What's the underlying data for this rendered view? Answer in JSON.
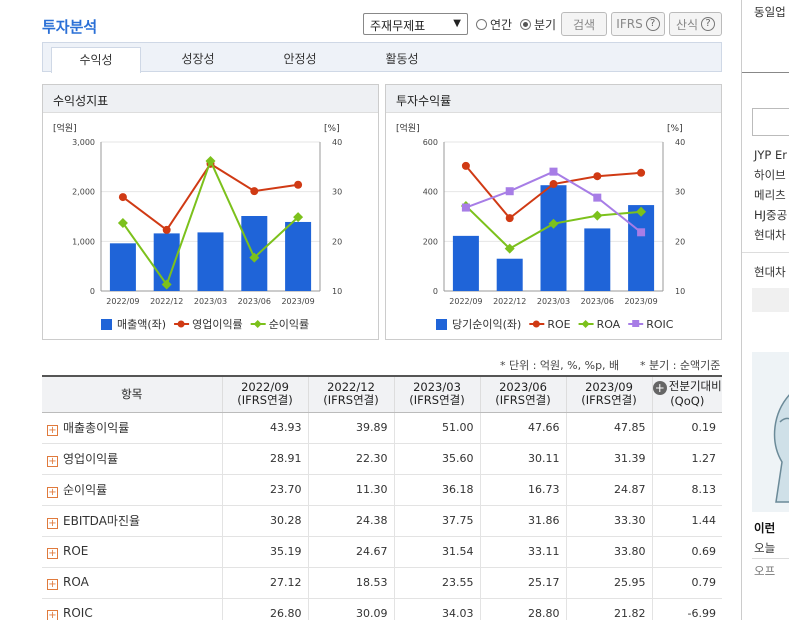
{
  "header": {
    "title": "투자분석",
    "select_value": "주재무제표",
    "radio_year": "연간",
    "radio_quarter": "분기",
    "search_btn": "검색",
    "ifrs_btn": "IFRS",
    "formula_btn": "산식"
  },
  "tabs": [
    "수익성",
    "성장성",
    "안정성",
    "활동성"
  ],
  "charts": {
    "left": {
      "title": "수익성지표",
      "left_unit": "[억원]",
      "right_unit": "[%]",
      "legend": [
        "매출액(좌)",
        "영업이익률",
        "순이익률"
      ]
    },
    "right": {
      "title": "투자수익률",
      "left_unit": "[억원]",
      "right_unit": "[%]",
      "legend": [
        "당기순이익(좌)",
        "ROE",
        "ROA",
        "ROIC"
      ]
    }
  },
  "chart_data": [
    {
      "type": "bar",
      "title": "수익성지표",
      "categories": [
        "2022/09",
        "2022/12",
        "2023/03",
        "2023/06",
        "2023/09"
      ],
      "ylim": [
        0,
        3000
      ],
      "y2lim": [
        10,
        40
      ],
      "yticks": [
        "0",
        "1,000",
        "2,000",
        "3,000"
      ],
      "y2ticks": [
        "10",
        "20",
        "30",
        "40"
      ],
      "series": [
        {
          "name": "매출액(좌)",
          "kind": "bar",
          "axis": "left",
          "color": "#1f64d8",
          "values": [
            960,
            1160,
            1180,
            1510,
            1390
          ]
        },
        {
          "name": "영업이익률",
          "kind": "line",
          "axis": "right",
          "color": "#d03a14",
          "values": [
            28.91,
            22.3,
            35.6,
            30.11,
            31.39
          ]
        },
        {
          "name": "순이익률",
          "kind": "line",
          "axis": "right",
          "color": "#7cc11c",
          "values": [
            23.7,
            11.3,
            36.18,
            16.73,
            24.87
          ]
        }
      ]
    },
    {
      "type": "bar",
      "title": "투자수익률",
      "categories": [
        "2022/09",
        "2022/12",
        "2023/03",
        "2023/06",
        "2023/09"
      ],
      "ylim": [
        0,
        600
      ],
      "y2lim": [
        10,
        40
      ],
      "yticks": [
        "0",
        "200",
        "400",
        "600"
      ],
      "y2ticks": [
        "10",
        "20",
        "30",
        "40"
      ],
      "series": [
        {
          "name": "당기순이익(좌)",
          "kind": "bar",
          "axis": "left",
          "color": "#1f64d8",
          "values": [
            222,
            130,
            426,
            252,
            346
          ]
        },
        {
          "name": "ROE",
          "kind": "line",
          "axis": "right",
          "color": "#d03a14",
          "values": [
            35.19,
            24.67,
            31.54,
            33.11,
            33.8
          ]
        },
        {
          "name": "ROA",
          "kind": "line",
          "axis": "right",
          "color": "#7cc11c",
          "values": [
            27.12,
            18.53,
            23.55,
            25.17,
            25.95
          ]
        },
        {
          "name": "ROIC",
          "kind": "line",
          "axis": "right",
          "color": "#a77de6",
          "values": [
            26.8,
            30.09,
            34.03,
            28.8,
            21.82
          ]
        }
      ]
    }
  ],
  "note_unit": "* 단위 : 억원, %, %p, 배",
  "note_quarter": "* 분기 : 순액기준",
  "table": {
    "headers": [
      {
        "l1": "항목",
        "l2": ""
      },
      {
        "l1": "2022/09",
        "l2": "(IFRS연결)"
      },
      {
        "l1": "2022/12",
        "l2": "(IFRS연결)"
      },
      {
        "l1": "2023/03",
        "l2": "(IFRS연결)"
      },
      {
        "l1": "2023/06",
        "l2": "(IFRS연결)"
      },
      {
        "l1": "2023/09",
        "l2": "(IFRS연결)"
      },
      {
        "l1": "전분기대비",
        "l2": "(QoQ)"
      }
    ],
    "rows": [
      {
        "label": "매출총이익률",
        "values": [
          "43.93",
          "39.89",
          "51.00",
          "47.66",
          "47.85",
          "0.19"
        ]
      },
      {
        "label": "영업이익률",
        "values": [
          "28.91",
          "22.30",
          "35.60",
          "30.11",
          "31.39",
          "1.27"
        ]
      },
      {
        "label": "순이익률",
        "values": [
          "23.70",
          "11.30",
          "36.18",
          "16.73",
          "24.87",
          "8.13"
        ]
      },
      {
        "label": "EBITDA마진율",
        "values": [
          "30.28",
          "24.38",
          "37.75",
          "31.86",
          "33.30",
          "1.44"
        ]
      },
      {
        "label": "ROE",
        "values": [
          "35.19",
          "24.67",
          "31.54",
          "33.11",
          "33.80",
          "0.69"
        ]
      },
      {
        "label": "ROA",
        "values": [
          "27.12",
          "18.53",
          "23.55",
          "25.17",
          "25.95",
          "0.79"
        ]
      },
      {
        "label": "ROIC",
        "values": [
          "26.80",
          "30.09",
          "34.03",
          "28.80",
          "21.82",
          "-6.99"
        ]
      }
    ]
  },
  "side": {
    "top_label": "동일업",
    "items": [
      "JYP Er",
      "하이브",
      "메리츠",
      "HJ중공",
      "현대차"
    ],
    "item2": "현대차",
    "ad_title": "이런",
    "ad_sub": "오늘",
    "ad_more": "오프"
  }
}
